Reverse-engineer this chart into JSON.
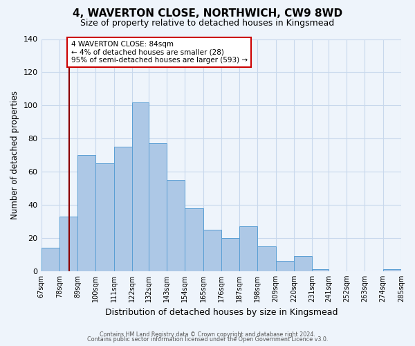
{
  "title": "4, WAVERTON CLOSE, NORTHWICH, CW9 8WD",
  "subtitle": "Size of property relative to detached houses in Kingsmead",
  "xlabel": "Distribution of detached houses by size in Kingsmead",
  "ylabel": "Number of detached properties",
  "bin_edges": [
    67,
    78,
    89,
    100,
    111,
    122,
    132,
    143,
    154,
    165,
    176,
    187,
    198,
    209,
    220,
    231,
    241,
    252,
    263,
    274,
    285
  ],
  "bin_labels": [
    "67sqm",
    "78sqm",
    "89sqm",
    "100sqm",
    "111sqm",
    "122sqm",
    "132sqm",
    "143sqm",
    "154sqm",
    "165sqm",
    "176sqm",
    "187sqm",
    "198sqm",
    "209sqm",
    "220sqm",
    "231sqm",
    "241sqm",
    "252sqm",
    "263sqm",
    "274sqm",
    "285sqm"
  ],
  "counts": [
    14,
    33,
    70,
    65,
    75,
    102,
    77,
    55,
    38,
    25,
    20,
    27,
    15,
    6,
    9,
    1,
    0,
    0,
    0,
    1
  ],
  "bar_color": "#adc8e6",
  "bar_edge_color": "#5a9fd4",
  "bg_color": "#eef4fb",
  "grid_color": "#c8d8ec",
  "property_size": 84,
  "vline_color": "#8b0000",
  "annotation_line1": "4 WAVERTON CLOSE: 84sqm",
  "annotation_line2": "← 4% of detached houses are smaller (28)",
  "annotation_line3": "95% of semi-detached houses are larger (593) →",
  "annotation_box_color": "#ffffff",
  "annotation_box_edge": "#cc0000",
  "ylim": [
    0,
    140
  ],
  "yticks": [
    0,
    20,
    40,
    60,
    80,
    100,
    120,
    140
  ],
  "footer1": "Contains HM Land Registry data © Crown copyright and database right 2024.",
  "footer2": "Contains public sector information licensed under the Open Government Licence v3.0."
}
